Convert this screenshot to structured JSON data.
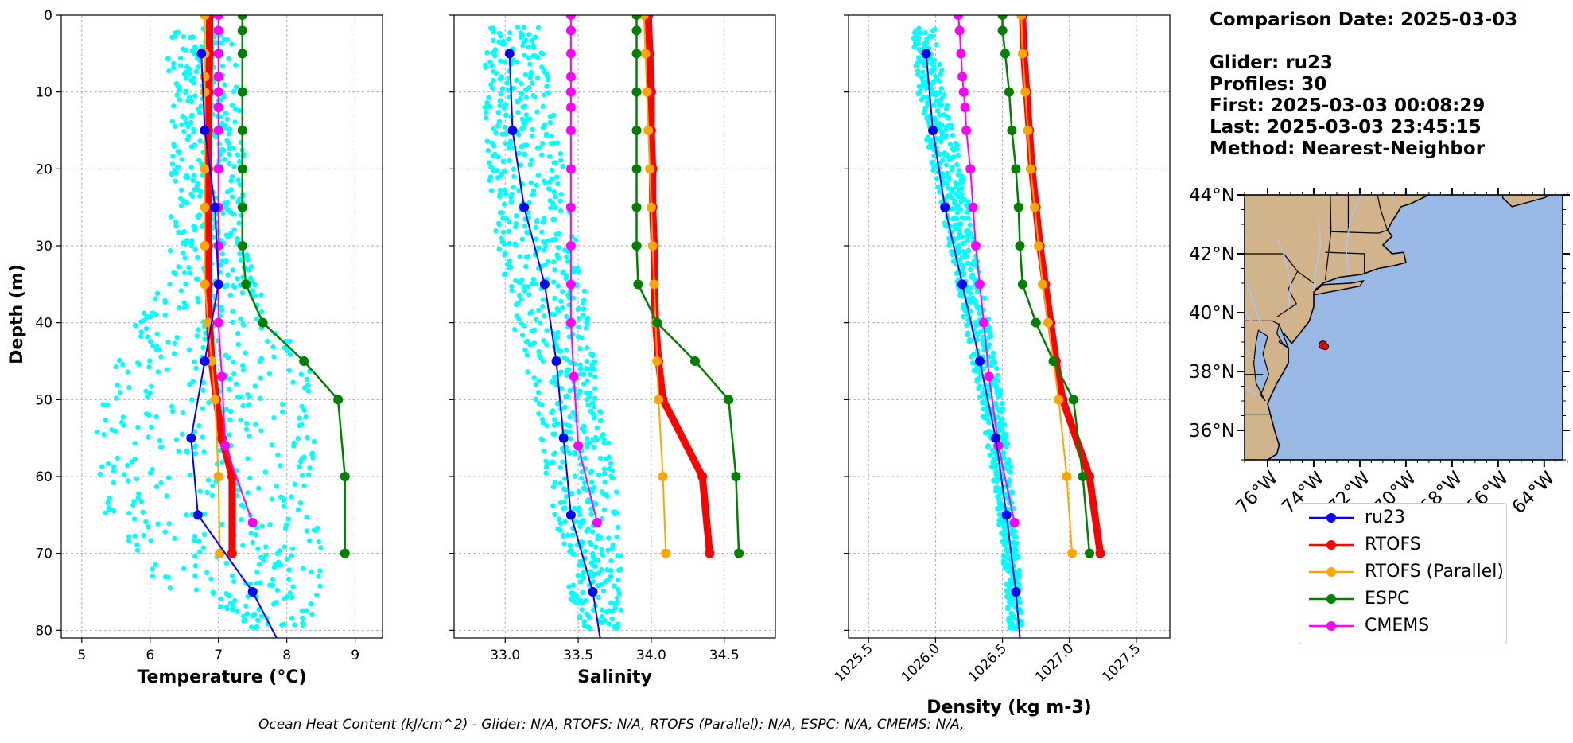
{
  "info": {
    "comparison_date": "Comparison Date: 2025-03-03",
    "glider": "Glider: ru23",
    "profiles": "Profiles: 30",
    "first": "First: 2025-03-03 00:08:29",
    "last": "Last: 2025-03-03 23:45:15",
    "method": "Method: Nearest-Neighbor"
  },
  "footer_text": "Ocean Heat Content (kJ/cm^2) - Glider: N/A,  RTOFS: N/A,  RTOFS (Parallel): N/A,  ESPC: N/A,  CMEMS: N/A,",
  "colors": {
    "ru23": "#0000ff",
    "rtofs": "#ff0000",
    "rtofs_parallel": "#ffa500",
    "espc": "#008000",
    "cmems": "#ff00ff",
    "glider_scatter": "#00ffff",
    "land": "#d2b48c",
    "ocean": "#9ab8e4",
    "rivers": "#a9c7f0"
  },
  "legend": [
    {
      "label": "ru23",
      "color": "#0000ff"
    },
    {
      "label": "RTOFS",
      "color": "#ff0000"
    },
    {
      "label": "RTOFS (Parallel)",
      "color": "#ffa500"
    },
    {
      "label": "ESPC",
      "color": "#008000"
    },
    {
      "label": "CMEMS",
      "color": "#ff00ff"
    }
  ],
  "chart_data": [
    {
      "type": "line",
      "xlabel": "Temperature (°C)",
      "ylabel": "Depth (m)",
      "xlim": [
        4.7,
        9.4
      ],
      "ylim": [
        81,
        0
      ],
      "xticks": [
        "5",
        "6",
        "7",
        "8",
        "9"
      ],
      "yticks": [
        "0",
        "10",
        "20",
        "30",
        "40",
        "50",
        "60",
        "70",
        "80"
      ],
      "grid": true,
      "glider_envelope": {
        "depth": [
          2,
          10,
          20,
          30,
          35,
          40,
          45,
          50,
          55,
          60,
          65,
          70,
          75,
          80
        ],
        "min": [
          6.2,
          6.3,
          6.3,
          6.3,
          6.2,
          5.8,
          5.5,
          5.3,
          5.2,
          5.2,
          5.3,
          5.5,
          6.3,
          7.6
        ],
        "max": [
          7.2,
          7.3,
          7.4,
          7.4,
          7.6,
          7.9,
          8.3,
          8.5,
          8.5,
          8.5,
          8.5,
          8.5,
          8.5,
          8.3
        ]
      },
      "series": [
        {
          "name": "ru23",
          "depth": [
            5,
            15,
            25,
            35,
            45,
            55,
            65,
            75,
            81
          ],
          "values": [
            6.75,
            6.8,
            6.95,
            7.0,
            6.8,
            6.6,
            6.7,
            7.5,
            7.85
          ]
        },
        {
          "name": "RTOFS",
          "depth": [
            0,
            5,
            10,
            15,
            20,
            25,
            30,
            35,
            40,
            45,
            50,
            55,
            60,
            70
          ],
          "values": [
            6.87,
            6.87,
            6.86,
            6.85,
            6.85,
            6.85,
            6.85,
            6.85,
            6.87,
            6.9,
            6.97,
            7.05,
            7.2,
            7.2
          ]
        },
        {
          "name": "RTOFS (Parallel)",
          "depth": [
            0,
            5,
            8,
            10,
            15,
            20,
            25,
            30,
            35,
            40,
            45,
            50,
            60,
            70
          ],
          "values": [
            6.8,
            6.8,
            6.8,
            6.8,
            6.8,
            6.8,
            6.8,
            6.8,
            6.8,
            6.85,
            6.9,
            6.95,
            7.0,
            7.02
          ]
        },
        {
          "name": "ESPC",
          "depth": [
            0,
            2,
            5,
            10,
            15,
            20,
            25,
            30,
            35,
            40,
            45,
            50,
            60,
            70
          ],
          "values": [
            7.35,
            7.35,
            7.35,
            7.35,
            7.35,
            7.35,
            7.35,
            7.35,
            7.4,
            7.65,
            8.25,
            8.75,
            8.85,
            8.85
          ]
        },
        {
          "name": "CMEMS",
          "depth": [
            0,
            2,
            5,
            8,
            10,
            12,
            15,
            20,
            25,
            30,
            35,
            40,
            47,
            56,
            66
          ],
          "values": [
            7.0,
            7.0,
            7.0,
            7.0,
            7.0,
            7.0,
            7.0,
            7.0,
            7.0,
            7.0,
            7.0,
            7.0,
            7.05,
            7.1,
            7.5
          ]
        }
      ]
    },
    {
      "type": "line",
      "xlabel": "Salinity",
      "xlim": [
        32.65,
        34.85
      ],
      "ylim": [
        81,
        0
      ],
      "xticks": [
        "33.0",
        "33.5",
        "34.0",
        "34.5"
      ],
      "grid": true,
      "glider_envelope": {
        "depth": [
          2,
          10,
          20,
          30,
          40,
          50,
          60,
          70,
          80
        ],
        "min": [
          32.85,
          32.85,
          32.88,
          32.95,
          33.05,
          33.2,
          33.28,
          33.38,
          33.5
        ],
        "max": [
          33.25,
          33.32,
          33.4,
          33.5,
          33.58,
          33.65,
          33.75,
          33.8,
          33.8
        ]
      },
      "series": [
        {
          "name": "ru23",
          "depth": [
            5,
            15,
            25,
            35,
            45,
            55,
            65,
            75,
            81
          ],
          "values": [
            33.03,
            33.05,
            33.13,
            33.27,
            33.35,
            33.4,
            33.45,
            33.6,
            33.65
          ]
        },
        {
          "name": "RTOFS",
          "depth": [
            0,
            5,
            10,
            15,
            20,
            25,
            30,
            35,
            40,
            45,
            50,
            60,
            70
          ],
          "values": [
            33.98,
            33.99,
            34.0,
            34.0,
            34.01,
            34.01,
            34.02,
            34.02,
            34.03,
            34.05,
            34.08,
            34.35,
            34.4
          ]
        },
        {
          "name": "RTOFS (Parallel)",
          "depth": [
            0,
            5,
            10,
            15,
            20,
            25,
            30,
            35,
            40,
            45,
            50,
            60,
            70
          ],
          "values": [
            33.95,
            33.96,
            33.97,
            33.98,
            33.99,
            34.0,
            34.01,
            34.02,
            34.03,
            34.04,
            34.05,
            34.08,
            34.1
          ]
        },
        {
          "name": "ESPC",
          "depth": [
            0,
            2,
            5,
            10,
            15,
            20,
            25,
            30,
            35,
            40,
            45,
            50,
            60,
            70
          ],
          "values": [
            33.9,
            33.9,
            33.9,
            33.9,
            33.9,
            33.9,
            33.9,
            33.9,
            33.91,
            34.04,
            34.3,
            34.53,
            34.58,
            34.6
          ]
        },
        {
          "name": "CMEMS",
          "depth": [
            0,
            2,
            5,
            8,
            10,
            12,
            15,
            20,
            25,
            30,
            35,
            40,
            47,
            56,
            66
          ],
          "values": [
            33.45,
            33.45,
            33.45,
            33.45,
            33.45,
            33.45,
            33.45,
            33.45,
            33.45,
            33.45,
            33.45,
            33.45,
            33.47,
            33.5,
            33.63
          ]
        }
      ]
    },
    {
      "type": "line",
      "xlabel": "Density (kg m-3)",
      "xlim": [
        1025.35,
        1027.75
      ],
      "ylim": [
        81,
        0
      ],
      "xticks": [
        "1025.5",
        "1026.0",
        "1026.5",
        "1027.0",
        "1027.5"
      ],
      "grid": true,
      "glider_envelope": {
        "depth": [
          2,
          10,
          20,
          30,
          40,
          50,
          60,
          70,
          80
        ],
        "min": [
          1025.82,
          1025.87,
          1025.97,
          1026.1,
          1026.22,
          1026.33,
          1026.43,
          1026.5,
          1026.55
        ],
        "max": [
          1026.0,
          1026.07,
          1026.2,
          1026.3,
          1026.4,
          1026.5,
          1026.57,
          1026.62,
          1026.65
        ]
      },
      "series": [
        {
          "name": "ru23",
          "depth": [
            5,
            15,
            25,
            35,
            45,
            55,
            65,
            75,
            81
          ],
          "values": [
            1025.93,
            1025.98,
            1026.07,
            1026.2,
            1026.33,
            1026.45,
            1026.53,
            1026.6,
            1026.63
          ]
        },
        {
          "name": "RTOFS",
          "depth": [
            0,
            5,
            10,
            15,
            20,
            25,
            30,
            35,
            40,
            45,
            50,
            60,
            70
          ],
          "values": [
            1026.65,
            1026.66,
            1026.68,
            1026.7,
            1026.72,
            1026.75,
            1026.78,
            1026.82,
            1026.86,
            1026.9,
            1026.95,
            1027.15,
            1027.23
          ]
        },
        {
          "name": "RTOFS (Parallel)",
          "depth": [
            0,
            5,
            10,
            15,
            20,
            25,
            30,
            35,
            40,
            45,
            50,
            60,
            70
          ],
          "values": [
            1026.64,
            1026.65,
            1026.67,
            1026.69,
            1026.71,
            1026.74,
            1026.77,
            1026.8,
            1026.84,
            1026.88,
            1026.92,
            1026.98,
            1027.02
          ]
        },
        {
          "name": "ESPC",
          "depth": [
            0,
            2,
            5,
            10,
            15,
            20,
            25,
            30,
            35,
            40,
            45,
            50,
            60,
            70
          ],
          "values": [
            1026.5,
            1026.5,
            1026.52,
            1026.55,
            1026.57,
            1026.6,
            1026.62,
            1026.63,
            1026.65,
            1026.75,
            1026.88,
            1027.03,
            1027.1,
            1027.15
          ]
        },
        {
          "name": "CMEMS",
          "depth": [
            0,
            2,
            5,
            8,
            10,
            12,
            15,
            20,
            25,
            30,
            35,
            40,
            47,
            56,
            66
          ],
          "values": [
            1026.17,
            1026.18,
            1026.19,
            1026.2,
            1026.21,
            1026.22,
            1026.23,
            1026.26,
            1026.28,
            1026.3,
            1026.33,
            1026.36,
            1026.4,
            1026.47,
            1026.59
          ]
        }
      ]
    },
    {
      "type": "map",
      "lon_ticks": [
        "76°W",
        "74°W",
        "72°W",
        "70°W",
        "68°W",
        "66°W",
        "64°W"
      ],
      "lat_ticks": [
        "44°N",
        "42°N",
        "40°N",
        "38°N",
        "36°N"
      ],
      "lon_range": [
        -77,
        -63.2
      ],
      "lat_range": [
        35,
        44
      ],
      "glider_position": {
        "lon": -73.6,
        "lat": 38.9
      }
    }
  ]
}
